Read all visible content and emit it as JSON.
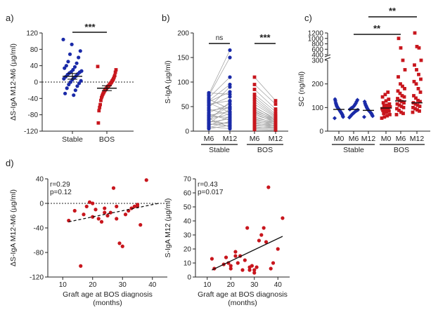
{
  "colors": {
    "stable": "#1a2aa8",
    "bos": "#c8161d"
  },
  "chart_data": [
    {
      "id": "a",
      "type": "scatter",
      "panel_label": "a)",
      "ylabel": "ΔS-IgA M12-M6 (µg/ml)",
      "ylim": [
        -120,
        120
      ],
      "yticks": [
        -120,
        -80,
        -40,
        0,
        40,
        80,
        120
      ],
      "categories": [
        "Stable",
        "BOS"
      ],
      "significance": "***",
      "series": [
        {
          "name": "Stable",
          "values": [
            104,
            92,
            76,
            68,
            60,
            50,
            46,
            40,
            37,
            34,
            30,
            27,
            25,
            24,
            22,
            20,
            18,
            15,
            13,
            10,
            8,
            6,
            3,
            0,
            -3,
            -6,
            -10,
            -15,
            -20,
            -28,
            -32
          ],
          "mean": 14,
          "sem": 7
        },
        {
          "name": "BOS",
          "values": [
            38,
            30,
            24,
            16,
            12,
            8,
            5,
            3,
            0,
            -2,
            -4,
            -6,
            -8,
            -10,
            -11,
            -13,
            -15,
            -17,
            -19,
            -21,
            -24,
            -27,
            -30,
            -34,
            -38,
            -45,
            -55,
            -62,
            -70,
            -100
          ],
          "mean": -15,
          "sem": 6
        }
      ]
    },
    {
      "id": "b",
      "type": "line",
      "panel_label": "b)",
      "ylabel": "S-IgA (µg/ml)",
      "ylim": [
        0,
        200
      ],
      "yticks": [
        0,
        50,
        100,
        150,
        200
      ],
      "x": [
        "M6",
        "M12",
        "M6",
        "M12"
      ],
      "groups": [
        "Stable",
        "BOS"
      ],
      "significance": [
        "ns",
        "***"
      ],
      "series": [
        {
          "name": "Stable",
          "m6": [
            5,
            7,
            9,
            11,
            13,
            15,
            16,
            18,
            20,
            22,
            24,
            26,
            28,
            30,
            32,
            35,
            38,
            42,
            45,
            48,
            52,
            55,
            58,
            60,
            62,
            65,
            68,
            72,
            75,
            78
          ],
          "m12": [
            12,
            20,
            5,
            30,
            18,
            10,
            45,
            25,
            15,
            60,
            35,
            8,
            50,
            28,
            40,
            22,
            55,
            48,
            33,
            90,
            70,
            62,
            38,
            80,
            95,
            45,
            110,
            150,
            165,
            75
          ]
        },
        {
          "name": "BOS",
          "m6": [
            3,
            5,
            7,
            9,
            11,
            13,
            15,
            17,
            19,
            21,
            23,
            25,
            27,
            30,
            33,
            36,
            38,
            40,
            42,
            45,
            48,
            50,
            55,
            60,
            65,
            70,
            75,
            85,
            95,
            110
          ],
          "m12": [
            2,
            4,
            8,
            5,
            10,
            7,
            12,
            9,
            14,
            11,
            16,
            13,
            18,
            15,
            20,
            17,
            22,
            19,
            24,
            21,
            26,
            23,
            28,
            30,
            32,
            35,
            40,
            45,
            55,
            62
          ]
        }
      ]
    },
    {
      "id": "c",
      "type": "scatter",
      "panel_label": "c)",
      "ylabel": "SC (ng/ml)",
      "yticks_lower": [
        0,
        100,
        200,
        300
      ],
      "yticks_upper": [
        400,
        600,
        800,
        1000,
        1200
      ],
      "ylim_lower": [
        0,
        300
      ],
      "ylim_upper": [
        400,
        1200
      ],
      "categories": [
        "M0",
        "M6",
        "M12",
        "M0",
        "M6",
        "M12"
      ],
      "groups": [
        "Stable",
        "BOS"
      ],
      "significance": [
        "**",
        "**"
      ],
      "series": [
        {
          "name": "Stable M0",
          "values": [
            55,
            60,
            65,
            70,
            72,
            75,
            78,
            80,
            82,
            85,
            87,
            90,
            92,
            94,
            96,
            98,
            100,
            103,
            106,
            110,
            115,
            120,
            128,
            135
          ],
          "median": 92
        },
        {
          "name": "Stable M6",
          "values": [
            58,
            62,
            66,
            70,
            74,
            77,
            80,
            83,
            86,
            88,
            90,
            92,
            95,
            98,
            100,
            103,
            107,
            112,
            118,
            125,
            132
          ],
          "median": 92
        },
        {
          "name": "Stable M12",
          "values": [
            60,
            64,
            68,
            72,
            75,
            78,
            80,
            82,
            84,
            86,
            88,
            90,
            93,
            96,
            100,
            104,
            108,
            112,
            118,
            125
          ],
          "median": 88
        },
        {
          "name": "BOS M0",
          "values": [
            55,
            60,
            65,
            70,
            75,
            80,
            85,
            88,
            90,
            92,
            95,
            98,
            100,
            103,
            106,
            110,
            115,
            120,
            128,
            135,
            145,
            155,
            165
          ],
          "median": 98
        },
        {
          "name": "BOS M6",
          "values": [
            70,
            75,
            80,
            88,
            95,
            100,
            105,
            110,
            115,
            120,
            125,
            130,
            138,
            145,
            150,
            160,
            170,
            180,
            190,
            200,
            230,
            260,
            300,
            650,
            1000
          ],
          "median": 128
        },
        {
          "name": "BOS M12",
          "values": [
            80,
            85,
            90,
            95,
            100,
            105,
            110,
            115,
            120,
            125,
            130,
            140,
            150,
            165,
            180,
            200,
            210,
            220,
            240,
            260,
            280,
            300,
            650,
            700,
            1200
          ],
          "median": 120
        }
      ]
    },
    {
      "id": "d1",
      "type": "scatter",
      "panel_label": "d)",
      "ylabel": "ΔS-IgA M12-M6 (µg/ml)",
      "xlabel": "Graft age at BOS diagnosis\n(months)",
      "xlim": [
        5,
        45
      ],
      "ylim": [
        -120,
        40
      ],
      "xticks": [
        10,
        20,
        30,
        40
      ],
      "yticks": [
        -120,
        -80,
        -40,
        0,
        40
      ],
      "stats": [
        "r=0.29",
        "p=0.12"
      ],
      "points": [
        [
          12,
          -28
        ],
        [
          14,
          -12
        ],
        [
          17,
          -18
        ],
        [
          18,
          -5
        ],
        [
          19,
          2
        ],
        [
          20,
          -22
        ],
        [
          21,
          -10
        ],
        [
          22,
          -25
        ],
        [
          23,
          -30
        ],
        [
          24,
          -8
        ],
        [
          25,
          -20
        ],
        [
          26,
          -15
        ],
        [
          27,
          25
        ],
        [
          28,
          -5
        ],
        [
          29,
          -65
        ],
        [
          30,
          -70
        ],
        [
          31,
          -18
        ],
        [
          32,
          -12
        ],
        [
          34,
          -5
        ],
        [
          35,
          -2
        ],
        [
          36,
          -35
        ],
        [
          38,
          38
        ],
        [
          16,
          -102
        ],
        [
          20,
          0
        ],
        [
          24,
          -15
        ],
        [
          28,
          -25
        ],
        [
          33,
          -8
        ],
        [
          35,
          -5
        ]
      ],
      "fit": [
        [
          12,
          -30
        ],
        [
          42,
          0
        ]
      ],
      "fit_style": "dashed"
    },
    {
      "id": "d2",
      "type": "scatter",
      "ylabel": "S-IgA M12 (µg/ml)",
      "xlabel": "Graft age at BOS diagnosis\n(months)",
      "xlim": [
        5,
        45
      ],
      "ylim": [
        0,
        70
      ],
      "xticks": [
        10,
        20,
        30,
        40
      ],
      "yticks": [
        0,
        10,
        20,
        30,
        40,
        50,
        60,
        70
      ],
      "stats": [
        "r=0.43",
        "p=0.017"
      ],
      "points": [
        [
          12,
          13
        ],
        [
          13,
          6
        ],
        [
          17,
          9
        ],
        [
          18,
          14
        ],
        [
          19,
          10
        ],
        [
          20,
          8
        ],
        [
          20,
          6
        ],
        [
          22,
          18
        ],
        [
          23,
          10
        ],
        [
          24,
          15
        ],
        [
          25,
          5
        ],
        [
          26,
          12
        ],
        [
          27,
          35
        ],
        [
          28,
          7
        ],
        [
          29,
          8
        ],
        [
          30,
          5
        ],
        [
          30,
          3
        ],
        [
          31,
          7
        ],
        [
          33,
          30
        ],
        [
          34,
          35
        ],
        [
          35,
          25
        ],
        [
          36,
          64
        ],
        [
          37,
          6
        ],
        [
          38,
          10
        ],
        [
          40,
          20
        ],
        [
          42,
          42
        ],
        [
          22,
          15
        ],
        [
          28,
          5
        ],
        [
          32,
          26
        ]
      ],
      "fit": [
        [
          12,
          5
        ],
        [
          42,
          29
        ]
      ],
      "fit_style": "solid"
    }
  ]
}
